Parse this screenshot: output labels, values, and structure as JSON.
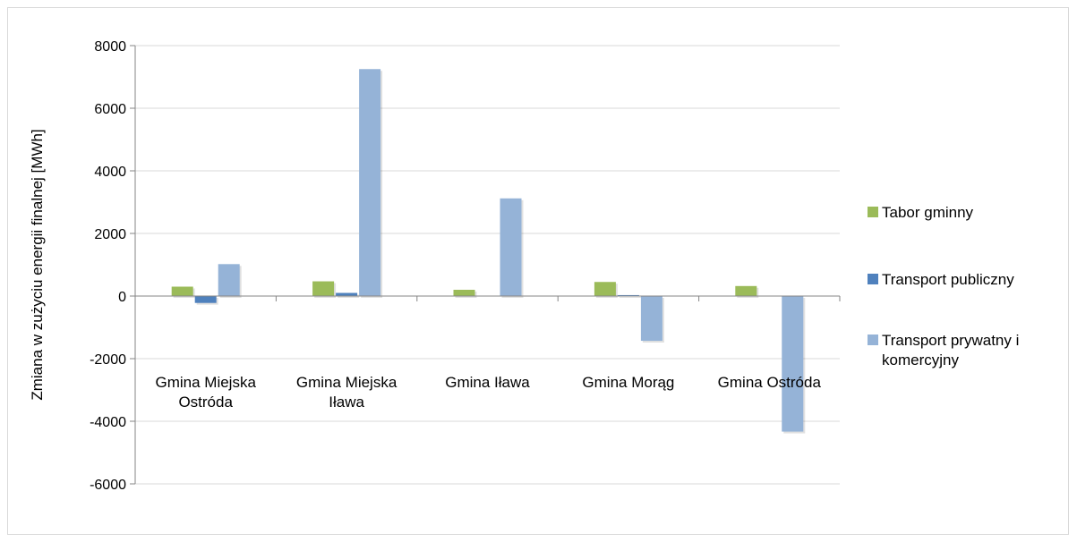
{
  "chart_data": {
    "type": "bar",
    "title": "",
    "xlabel": "",
    "ylabel": "Zmiana w  zużyciu energii finalnej [MWh]",
    "ylim": [
      -6000,
      8000
    ],
    "yticks": [
      8000,
      6000,
      4000,
      2000,
      0,
      -2000,
      -4000,
      -6000
    ],
    "grid": true,
    "legend_position": "right",
    "categories": [
      [
        "Gmina Miejska",
        "Ostróda"
      ],
      [
        "Gmina Miejska",
        "Iława"
      ],
      [
        "Gmina Iława"
      ],
      [
        "Gmina Morąg"
      ],
      [
        "Gmina Ostróda"
      ]
    ],
    "series": [
      {
        "name": "Tabor gminny",
        "color": "#9bbb59",
        "values": [
          300,
          470,
          200,
          450,
          320
        ]
      },
      {
        "name": "Transport publiczny",
        "color": "#4f81bd",
        "values": [
          -220,
          100,
          0,
          30,
          0
        ]
      },
      {
        "name": [
          "Transport prywatny i",
          "komercyjny"
        ],
        "color": "#95b3d7",
        "values": [
          1020,
          7250,
          3120,
          -1430,
          -4330
        ]
      }
    ]
  }
}
